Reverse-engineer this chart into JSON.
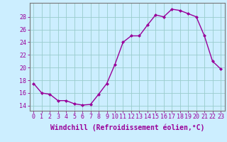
{
  "x": [
    0,
    1,
    2,
    3,
    4,
    5,
    6,
    7,
    8,
    9,
    10,
    11,
    12,
    13,
    14,
    15,
    16,
    17,
    18,
    19,
    20,
    21,
    22,
    23
  ],
  "y": [
    17.5,
    16.0,
    15.8,
    14.8,
    14.8,
    14.3,
    14.1,
    14.2,
    15.8,
    17.5,
    20.5,
    24.0,
    25.0,
    25.0,
    26.7,
    28.3,
    28.0,
    29.2,
    29.0,
    28.5,
    28.0,
    25.0,
    21.0,
    19.8
  ],
  "line_color": "#990099",
  "marker": "D",
  "marker_size": 2,
  "bg_color": "#cceeff",
  "grid_color": "#99cccc",
  "xlabel": "Windchill (Refroidissement éolien,°C)",
  "xlabel_color": "#990099",
  "xlabel_fontsize": 7,
  "xtick_labels": [
    "0",
    "1",
    "2",
    "3",
    "4",
    "5",
    "6",
    "7",
    "8",
    "9",
    "10",
    "11",
    "12",
    "13",
    "14",
    "15",
    "16",
    "17",
    "18",
    "19",
    "20",
    "21",
    "22",
    "23"
  ],
  "ytick_values": [
    14,
    16,
    18,
    20,
    22,
    24,
    26,
    28
  ],
  "ylim": [
    13.2,
    30.2
  ],
  "xlim": [
    -0.5,
    23.5
  ],
  "tick_color": "#990099",
  "tick_fontsize": 6,
  "spine_color": "#777777"
}
